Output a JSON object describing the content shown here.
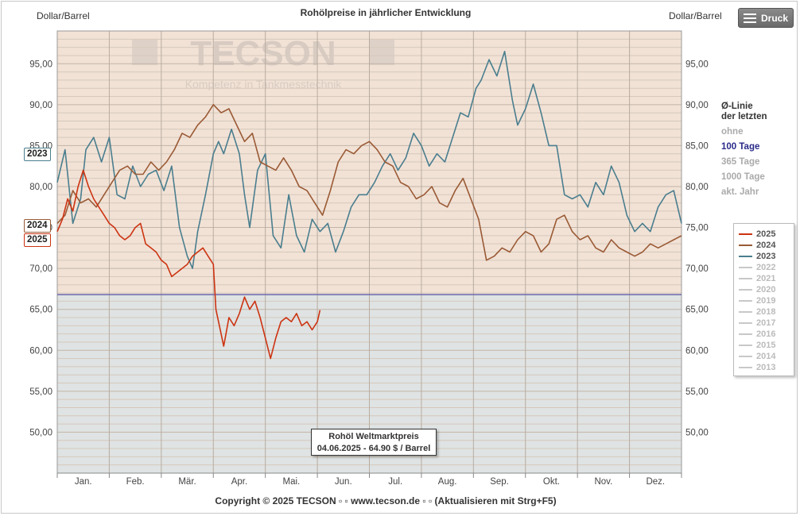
{
  "header": {
    "title": "Rohölpreise in jährlicher Entwicklung",
    "unit_left": "Dollar/Barrel",
    "unit_right": "Dollar/Barrel",
    "print_label": "Druck"
  },
  "watermark": {
    "brand": "TECSON",
    "tagline": "Kompetenz in Tankmesstechnik"
  },
  "avg_line": {
    "header_line1": "Ø-Linie",
    "header_line2": "der letzten",
    "options": [
      "ohne",
      "100 Tage",
      "365 Tage",
      "1000 Tage",
      "akt. Jahr"
    ],
    "selected": "100 Tage"
  },
  "legend": {
    "items": [
      {
        "label": "2025",
        "color": "#cc3311",
        "active": true
      },
      {
        "label": "2024",
        "color": "#9a5a35",
        "active": true
      },
      {
        "label": "2023",
        "color": "#4a7e8e",
        "active": true
      },
      {
        "label": "2022",
        "color": "#c8c8c8",
        "active": false
      },
      {
        "label": "2021",
        "color": "#c8c8c8",
        "active": false
      },
      {
        "label": "2020",
        "color": "#c8c8c8",
        "active": false
      },
      {
        "label": "2019",
        "color": "#c8c8c8",
        "active": false
      },
      {
        "label": "2018",
        "color": "#c8c8c8",
        "active": false
      },
      {
        "label": "2017",
        "color": "#c8c8c8",
        "active": false
      },
      {
        "label": "2016",
        "color": "#c8c8c8",
        "active": false
      },
      {
        "label": "2015",
        "color": "#c8c8c8",
        "active": false
      },
      {
        "label": "2014",
        "color": "#c8c8c8",
        "active": false
      },
      {
        "label": "2013",
        "color": "#c8c8c8",
        "active": false
      }
    ]
  },
  "tags": {
    "y2023": "2023",
    "y2024": "2024",
    "y2025": "2025"
  },
  "tooltip": {
    "line1": "Rohöl Weltmarktpreis",
    "line2": "04.06.2025 - 64.90 $ / Barrel"
  },
  "footer": {
    "copyright": "Copyright © 2025 TECSON ▫ ▫ www.tecson.de ▫ ▫ (Aktualisieren mit Strg+F5)"
  },
  "chart_data": {
    "type": "line",
    "ylim": [
      45,
      99
    ],
    "yticks": [
      50,
      55,
      60,
      65,
      70,
      75,
      80,
      85,
      90,
      95
    ],
    "ytick_labels": [
      "50,00",
      "55,00",
      "60,00",
      "65,00",
      "70,00",
      "75,00",
      "80,00",
      "85,00",
      "90,00",
      "95,00"
    ],
    "xlim": [
      0,
      12
    ],
    "months": [
      "Jan.",
      "Feb.",
      "Mär.",
      "Apr.",
      "Mai.",
      "Jun.",
      "Jul.",
      "Aug.",
      "Sep.",
      "Okt.",
      "Nov.",
      "Dez."
    ],
    "average_line": {
      "value": 66.8,
      "color": "#6a6ab0"
    },
    "background_above": "#f2e2d6",
    "background_below": "#dfe3e3",
    "series": [
      {
        "name": "2023",
        "color": "#4a7e8e",
        "x": [
          0.0,
          0.15,
          0.3,
          0.45,
          0.55,
          0.7,
          0.85,
          1.0,
          1.15,
          1.3,
          1.45,
          1.6,
          1.75,
          1.9,
          2.05,
          2.2,
          2.35,
          2.5,
          2.6,
          2.7,
          2.85,
          3.0,
          3.1,
          3.2,
          3.35,
          3.5,
          3.6,
          3.7,
          3.85,
          4.0,
          4.15,
          4.3,
          4.45,
          4.6,
          4.75,
          4.9,
          5.05,
          5.2,
          5.35,
          5.5,
          5.65,
          5.8,
          5.95,
          6.1,
          6.25,
          6.4,
          6.55,
          6.7,
          6.85,
          7.0,
          7.15,
          7.3,
          7.45,
          7.6,
          7.75,
          7.9,
          8.05,
          8.15,
          8.3,
          8.45,
          8.6,
          8.75,
          8.85,
          9.0,
          9.15,
          9.3,
          9.45,
          9.6,
          9.75,
          9.9,
          10.05,
          10.2,
          10.35,
          10.5,
          10.65,
          10.8,
          10.95,
          11.1,
          11.25,
          11.4,
          11.55,
          11.7,
          11.85,
          12.0
        ],
        "y": [
          80.5,
          84.5,
          75.5,
          78.5,
          84.5,
          86,
          83,
          86,
          79,
          78.5,
          82.5,
          80,
          81.5,
          82,
          79.5,
          82.5,
          75,
          71.5,
          70,
          74.5,
          79,
          84,
          85.5,
          84,
          87,
          84,
          79,
          75,
          82,
          84,
          74,
          72.5,
          79,
          74,
          72,
          76,
          74.5,
          75.5,
          72,
          74.5,
          77.5,
          79,
          79,
          80.5,
          82.5,
          84,
          82,
          83.5,
          86.5,
          85,
          82.5,
          84,
          83,
          86,
          89,
          88.5,
          92,
          93,
          95.5,
          93.5,
          96.5,
          90.5,
          87.5,
          89.5,
          92.5,
          89,
          85,
          85,
          79,
          78.5,
          79,
          77.5,
          80.5,
          79,
          82.5,
          80.5,
          76.5,
          74.5,
          75.5,
          74.5,
          77.5,
          79,
          79.5,
          75.5
        ]
      },
      {
        "name": "2024",
        "color": "#9a5a35",
        "x": [
          0.0,
          0.15,
          0.3,
          0.45,
          0.6,
          0.75,
          0.9,
          1.05,
          1.2,
          1.35,
          1.5,
          1.65,
          1.8,
          1.95,
          2.1,
          2.25,
          2.4,
          2.55,
          2.7,
          2.85,
          3.0,
          3.15,
          3.3,
          3.45,
          3.6,
          3.75,
          3.9,
          4.05,
          4.2,
          4.35,
          4.5,
          4.65,
          4.8,
          4.95,
          5.1,
          5.25,
          5.4,
          5.55,
          5.7,
          5.85,
          6.0,
          6.15,
          6.3,
          6.45,
          6.6,
          6.75,
          6.9,
          7.05,
          7.2,
          7.35,
          7.5,
          7.65,
          7.8,
          7.95,
          8.1,
          8.25,
          8.4,
          8.55,
          8.7,
          8.85,
          9.0,
          9.15,
          9.3,
          9.45,
          9.6,
          9.75,
          9.9,
          10.05,
          10.2,
          10.35,
          10.5,
          10.65,
          10.8,
          10.95,
          11.1,
          11.25,
          11.4,
          11.55,
          11.7,
          11.85,
          12.0
        ],
        "y": [
          75.5,
          76.5,
          79.5,
          78,
          78.5,
          77.5,
          79,
          80.5,
          82,
          82.5,
          81.5,
          81.5,
          83,
          82,
          83,
          84.5,
          86.5,
          86,
          87.5,
          88.5,
          90,
          89,
          89.5,
          87.5,
          85.5,
          86.5,
          83,
          82.5,
          82,
          83.5,
          82,
          80,
          79.5,
          78,
          76.5,
          79.5,
          83,
          84.5,
          84,
          85,
          85.5,
          84.5,
          83,
          82.5,
          80.5,
          80,
          78.5,
          79,
          80,
          78,
          77.5,
          79.5,
          81,
          78.5,
          76,
          71,
          71.5,
          72.5,
          72,
          73.5,
          74.5,
          74,
          72,
          73,
          76,
          76.5,
          74.5,
          73.5,
          74,
          72.5,
          72,
          73.5,
          72.5,
          72,
          71.5,
          72,
          73,
          72.5,
          73,
          73.5,
          74
        ]
      },
      {
        "name": "2025",
        "color": "#cc3311",
        "x": [
          0.0,
          0.1,
          0.2,
          0.3,
          0.4,
          0.5,
          0.6,
          0.7,
          0.8,
          0.9,
          1.0,
          1.1,
          1.2,
          1.3,
          1.4,
          1.5,
          1.6,
          1.7,
          1.8,
          1.9,
          2.0,
          2.1,
          2.2,
          2.3,
          2.4,
          2.5,
          2.6,
          2.7,
          2.8,
          2.9,
          3.0,
          3.05,
          3.1,
          3.2,
          3.3,
          3.4,
          3.5,
          3.6,
          3.7,
          3.8,
          3.9,
          4.0,
          4.1,
          4.2,
          4.3,
          4.4,
          4.5,
          4.6,
          4.7,
          4.8,
          4.9,
          5.0,
          5.05
        ],
        "y": [
          74.5,
          76,
          78.5,
          77,
          80,
          82,
          80,
          78.5,
          77.5,
          76.5,
          75.5,
          75,
          74,
          73.5,
          74,
          75,
          75.5,
          73,
          72.5,
          72,
          71,
          70.5,
          69,
          69.5,
          70,
          70.5,
          71.5,
          72,
          72.5,
          71.5,
          70.5,
          65,
          63.5,
          60.5,
          64,
          63,
          64.5,
          66.5,
          65,
          66,
          64,
          61.5,
          59,
          61.5,
          63.5,
          64,
          63.5,
          64.5,
          63,
          63.5,
          62.5,
          63.5,
          64.9
        ]
      }
    ]
  }
}
